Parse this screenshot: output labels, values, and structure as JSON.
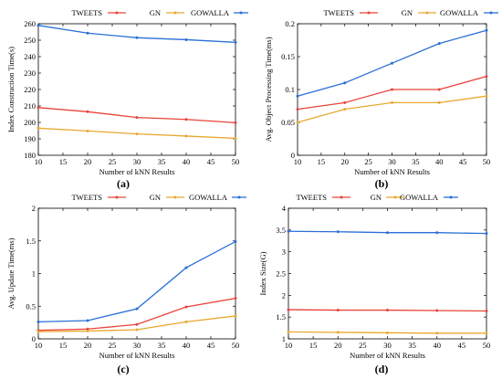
{
  "colors": {
    "TWEETS": "#e8443a",
    "GN": "#e8a830",
    "GOWALLA": "#2a6fd6"
  },
  "chart_data": [
    {
      "type": "line",
      "panel_label": "(a)",
      "xlabel": "Number of kNN Results",
      "ylabel": "Index Construction Time(s)",
      "x": [
        10,
        20,
        30,
        40,
        50
      ],
      "xlim": [
        10,
        50
      ],
      "xticks": [
        "10",
        "15",
        "20",
        "25",
        "30",
        "35",
        "40",
        "45",
        "50"
      ],
      "ylim": [
        180,
        260
      ],
      "yticks": [
        "180",
        "190",
        "200",
        "210",
        "220",
        "230",
        "240",
        "250",
        "260"
      ],
      "legend_position": "top",
      "series": [
        {
          "name": "TWEETS",
          "values": [
            209,
            206.5,
            203,
            201.8,
            199.8
          ]
        },
        {
          "name": "GN",
          "values": [
            196.5,
            194.8,
            193,
            191.7,
            190.3
          ]
        },
        {
          "name": "GOWALLA",
          "values": [
            259,
            254.3,
            251.5,
            250.3,
            248.7
          ]
        }
      ]
    },
    {
      "type": "line",
      "panel_label": "(b)",
      "xlabel": "Number of kNN Results",
      "ylabel": "Avg. Object Processing Time(ms)",
      "x": [
        10,
        20,
        30,
        40,
        50
      ],
      "xlim": [
        10,
        50
      ],
      "xticks": [
        "10",
        "15",
        "20",
        "25",
        "30",
        "35",
        "40",
        "45",
        "50"
      ],
      "ylim": [
        0,
        0.2
      ],
      "yticks": [
        "0",
        "0.05",
        "0.1",
        "0.15",
        "0.2"
      ],
      "legend_position": "top",
      "series": [
        {
          "name": "TWEETS",
          "values": [
            0.07,
            0.08,
            0.1,
            0.1,
            0.12
          ]
        },
        {
          "name": "GN",
          "values": [
            0.05,
            0.07,
            0.08,
            0.08,
            0.09
          ]
        },
        {
          "name": "GOWALLA",
          "values": [
            0.09,
            0.11,
            0.14,
            0.17,
            0.19
          ]
        }
      ]
    },
    {
      "type": "line",
      "panel_label": "(c)",
      "xlabel": "Number of kNN Results",
      "ylabel": "Avg. Update Time(ms)",
      "x": [
        10,
        20,
        30,
        40,
        50
      ],
      "xlim": [
        10,
        50
      ],
      "xticks": [
        "10",
        "15",
        "20",
        "25",
        "30",
        "35",
        "40",
        "45",
        "50"
      ],
      "ylim": [
        0,
        2
      ],
      "yticks": [
        "0",
        "0.5",
        "1",
        "1.5",
        "2"
      ],
      "legend_position": "top",
      "series": [
        {
          "name": "TWEETS",
          "values": [
            0.13,
            0.15,
            0.22,
            0.49,
            0.62
          ]
        },
        {
          "name": "GN",
          "values": [
            0.11,
            0.12,
            0.14,
            0.26,
            0.35
          ]
        },
        {
          "name": "GOWALLA",
          "values": [
            0.26,
            0.28,
            0.46,
            1.09,
            1.49
          ]
        }
      ]
    },
    {
      "type": "line",
      "panel_label": "(d)",
      "xlabel": "Number of kNN Results",
      "ylabel": "Index Size(G)",
      "x": [
        10,
        20,
        30,
        40,
        50
      ],
      "xlim": [
        10,
        50
      ],
      "xticks": [
        "10",
        "15",
        "20",
        "25",
        "30",
        "35",
        "40",
        "45",
        "50"
      ],
      "ylim": [
        1,
        4
      ],
      "yticks": [
        "1",
        "1.5",
        "2",
        "2.5",
        "3",
        "3.5",
        "4"
      ],
      "legend_position": "top",
      "series": [
        {
          "name": "TWEETS",
          "values": [
            1.67,
            1.66,
            1.66,
            1.65,
            1.64
          ]
        },
        {
          "name": "GN",
          "values": [
            1.16,
            1.15,
            1.14,
            1.13,
            1.13
          ]
        },
        {
          "name": "GOWALLA",
          "values": [
            3.47,
            3.46,
            3.44,
            3.44,
            3.42
          ]
        }
      ]
    }
  ]
}
